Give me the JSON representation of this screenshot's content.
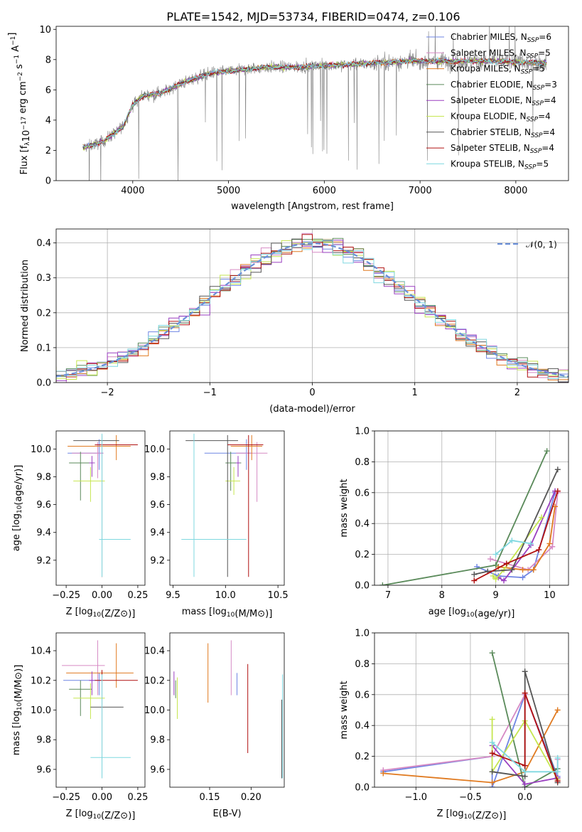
{
  "figure": {
    "title": "PLATE=1542, MJD=53734, FIBERID=0474, z=0.106"
  },
  "colors": {
    "Chabrier MILES": "#6f85e3",
    "Salpeter MILES": "#d68ac4",
    "Kroupa MILES": "#e07a20",
    "Chabrier ELODIE": "#5a8a5a",
    "Salpeter ELODIE": "#9a3fc0",
    "Kroupa ELODIE": "#c6e650",
    "Chabrier STELIB": "#555555",
    "Salpeter STELIB": "#b01010",
    "Kroupa STELIB": "#7fd8e0",
    "data": "#808080",
    "normal": "#6a8fd8",
    "grid": "#b0b0b0"
  },
  "chart_data": [
    {
      "type": "line",
      "id": "spectrum",
      "xlabel": "wavelength [Angstrom, rest frame]",
      "ylabel": "Flux [f_λ10^-17 erg cm^-2 s^-1 A^-1]",
      "xlim": [
        3200,
        8550
      ],
      "ylim": [
        0,
        10.2
      ],
      "xticks": [
        4000,
        5000,
        6000,
        7000,
        8000
      ],
      "yticks": [
        0,
        2,
        4,
        6,
        8,
        10
      ],
      "grid": false,
      "legend_position": "top-right",
      "series": [
        {
          "name": "Chabrier MILES, N_SSP=6",
          "model": "Chabrier MILES"
        },
        {
          "name": "Salpeter MILES, N_SSP=5",
          "model": "Salpeter MILES"
        },
        {
          "name": "Kroupa MILES, N_SSP=5",
          "model": "Kroupa MILES"
        },
        {
          "name": "Chabrier ELODIE, N_SSP=3",
          "model": "Chabrier ELODIE"
        },
        {
          "name": "Salpeter ELODIE, N_SSP=4",
          "model": "Salpeter ELODIE"
        },
        {
          "name": "Kroupa ELODIE, N_SSP=4",
          "model": "Kroupa ELODIE"
        },
        {
          "name": "Chabrier STELIB, N_SSP=4",
          "model": "Chabrier STELIB"
        },
        {
          "name": "Salpeter STELIB, N_SSP=4",
          "model": "Salpeter STELIB"
        },
        {
          "name": "Kroupa STELIB, N_SSP=5",
          "model": "Kroupa STELIB"
        }
      ],
      "continuum": {
        "x": [
          3500,
          3700,
          3900,
          4000,
          4100,
          4300,
          4500,
          4800,
          5100,
          5400,
          5700,
          6000,
          6300,
          6600,
          6900,
          7200,
          7500,
          7800,
          8100,
          8320
        ],
        "y": [
          2.2,
          2.6,
          3.6,
          5.0,
          5.6,
          5.8,
          6.4,
          7.1,
          7.3,
          7.5,
          7.5,
          7.6,
          7.7,
          7.8,
          7.9,
          7.9,
          7.9,
          7.9,
          7.8,
          7.8
        ]
      }
    },
    {
      "type": "line",
      "id": "residuals",
      "xlabel": "(data-model)/error",
      "ylabel": "Normed distribution",
      "xlim": [
        -2.5,
        2.5
      ],
      "ylim": [
        0,
        0.44
      ],
      "xticks": [
        -2,
        -1,
        0,
        1,
        2
      ],
      "yticks": [
        0.0,
        0.1,
        0.2,
        0.3,
        0.4
      ],
      "grid": true,
      "legend_position": "top-right",
      "normal_label": "𝒩(0, 1)",
      "bin_width": 0.1
    },
    {
      "type": "scatter",
      "id": "age-vs-Z",
      "xlabel": "Z [log10(Z/Z⊙)]",
      "ylabel": "age  [log10(age/yr)]",
      "xlim": [
        -0.32,
        0.3
      ],
      "ylim": [
        9.02,
        10.13
      ],
      "xticks": [
        -0.25,
        0.0,
        0.25
      ],
      "yticks": [
        9.2,
        9.4,
        9.6,
        9.8,
        10.0
      ],
      "grid": false,
      "points": [
        {
          "model": "Chabrier MILES",
          "x": -0.02,
          "y": 9.97,
          "xerr": [
            0.22,
            0.03
          ],
          "yerr": [
            0.12,
            0.1
          ]
        },
        {
          "model": "Salpeter MILES",
          "x": -0.03,
          "y": 9.97,
          "xerr": [
            0.18,
            0.04
          ],
          "yerr": [
            0.18,
            0.08
          ]
        },
        {
          "model": "Kroupa MILES",
          "x": 0.1,
          "y": 10.02,
          "xerr": [
            0.34,
            0.1
          ],
          "yerr": [
            0.1,
            0.08
          ]
        },
        {
          "model": "Chabrier ELODIE",
          "x": -0.15,
          "y": 9.9,
          "xerr": [
            0.08,
            0.08
          ],
          "yerr": [
            0.27,
            0.08
          ]
        },
        {
          "model": "Salpeter ELODIE",
          "x": -0.07,
          "y": 9.9,
          "xerr": [
            0.02,
            0.02
          ],
          "yerr": [
            0.1,
            0.05
          ]
        },
        {
          "model": "Kroupa ELODIE",
          "x": -0.08,
          "y": 9.77,
          "xerr": [
            0.12,
            0.1
          ],
          "yerr": [
            0.15,
            0.1
          ]
        },
        {
          "model": "Chabrier STELIB",
          "x": 0.0,
          "y": 10.06,
          "xerr": [
            0.2,
            0.12
          ],
          "yerr": [
            0.98,
            0.04
          ]
        },
        {
          "model": "Salpeter STELIB",
          "x": 0.0,
          "y": 10.03,
          "xerr": [
            0.05,
            0.25
          ],
          "yerr": [
            0.95,
            0.07
          ]
        },
        {
          "model": "Kroupa STELIB",
          "x": 0.0,
          "y": 9.35,
          "xerr": [
            0.02,
            0.2
          ],
          "yerr": [
            0.27,
            0.76
          ]
        }
      ]
    },
    {
      "type": "scatter",
      "id": "age-vs-mass",
      "xlabel": "mass [log10(M/M⊙)]",
      "ylabel": "",
      "xlim": [
        9.47,
        10.56
      ],
      "ylim": [
        9.02,
        10.13
      ],
      "xticks": [
        9.5,
        10.0,
        10.5
      ],
      "yticks": [
        9.2,
        9.4,
        9.6,
        9.8,
        10.0
      ],
      "grid": false,
      "points": [
        {
          "model": "Chabrier MILES",
          "x": 10.2,
          "y": 9.97,
          "xerr": [
            0.4,
            0.05
          ],
          "yerr": [
            0.12,
            0.1
          ]
        },
        {
          "model": "Salpeter MILES",
          "x": 10.3,
          "y": 9.97,
          "xerr": [
            0.2,
            0.1
          ],
          "yerr": [
            0.35,
            0.08
          ]
        },
        {
          "model": "Kroupa MILES",
          "x": 10.25,
          "y": 10.02,
          "xerr": [
            0.2,
            0.1
          ],
          "yerr": [
            0.1,
            0.08
          ]
        },
        {
          "model": "Chabrier ELODIE",
          "x": 10.05,
          "y": 9.9,
          "xerr": [
            0.05,
            0.1
          ],
          "yerr": [
            0.2,
            0.08
          ]
        },
        {
          "model": "Salpeter ELODIE",
          "x": 10.12,
          "y": 9.9,
          "xerr": [
            0.02,
            0.02
          ],
          "yerr": [
            0.1,
            0.05
          ]
        },
        {
          "model": "Kroupa ELODIE",
          "x": 10.08,
          "y": 9.77,
          "xerr": [
            0.08,
            0.06
          ],
          "yerr": [
            0.1,
            0.1
          ]
        },
        {
          "model": "Chabrier STELIB",
          "x": 10.02,
          "y": 10.06,
          "xerr": [
            0.4,
            0.1
          ],
          "yerr": [
            0.98,
            0.04
          ]
        },
        {
          "model": "Salpeter STELIB",
          "x": 10.22,
          "y": 10.03,
          "xerr": [
            0.2,
            0.14
          ],
          "yerr": [
            0.95,
            0.07
          ]
        },
        {
          "model": "Kroupa STELIB",
          "x": 9.7,
          "y": 9.35,
          "xerr": [
            0.12,
            0.5
          ],
          "yerr": [
            0.27,
            0.76
          ]
        }
      ]
    },
    {
      "type": "line",
      "id": "mass-weight-vs-age",
      "xlabel": "age  [log10(age/yr)]",
      "ylabel": "mass weight",
      "xlim": [
        6.75,
        10.35
      ],
      "ylim": [
        0,
        1
      ],
      "xticks": [
        7,
        8,
        9,
        10
      ],
      "yticks": [
        0.0,
        0.2,
        0.4,
        0.6,
        0.8,
        1.0
      ],
      "grid": true,
      "series": [
        {
          "model": "Chabrier MILES",
          "x": [
            8.65,
            9.05,
            9.5,
            9.7,
            10.1
          ],
          "y": [
            0.12,
            0.06,
            0.05,
            0.1,
            0.6
          ]
        },
        {
          "model": "Salpeter MILES",
          "x": [
            8.9,
            9.2,
            9.6,
            10.05,
            10.15
          ],
          "y": [
            0.17,
            0.14,
            0.1,
            0.25,
            0.6
          ]
        },
        {
          "model": "Kroupa MILES",
          "x": [
            9.05,
            9.5,
            9.7,
            10.0,
            10.1
          ],
          "y": [
            0.12,
            0.1,
            0.1,
            0.27,
            0.51
          ]
        },
        {
          "model": "Chabrier ELODIE",
          "x": [
            6.9,
            9.0,
            9.95
          ],
          "y": [
            0.0,
            0.13,
            0.87
          ]
        },
        {
          "model": "Salpeter ELODIE",
          "x": [
            9.05,
            9.15,
            9.65,
            10.1
          ],
          "y": [
            0.05,
            0.03,
            0.26,
            0.61
          ]
        },
        {
          "model": "Kroupa ELODIE",
          "x": [
            8.95,
            9.0,
            9.15,
            9.85
          ],
          "y": [
            0.06,
            0.04,
            0.1,
            0.44
          ]
        },
        {
          "model": "Chabrier STELIB",
          "x": [
            8.6,
            8.85,
            9.3,
            10.15
          ],
          "y": [
            0.07,
            0.09,
            0.1,
            0.75
          ]
        },
        {
          "model": "Salpeter STELIB",
          "x": [
            8.6,
            9.2,
            9.8,
            10.15
          ],
          "y": [
            0.03,
            0.14,
            0.23,
            0.61
          ]
        },
        {
          "model": "Kroupa STELIB",
          "x": [
            9.0,
            9.3,
            9.65
          ],
          "y": [
            0.2,
            0.29,
            0.27
          ]
        }
      ]
    },
    {
      "type": "scatter",
      "id": "mass-vs-Z",
      "xlabel": "Z [log10(Z/Z⊙)]",
      "ylabel": "mass [log10(M/M⊙)]",
      "xlim": [
        -0.32,
        0.3
      ],
      "ylim": [
        9.48,
        10.52
      ],
      "xticks": [
        -0.25,
        0.0,
        0.25
      ],
      "yticks": [
        9.6,
        9.8,
        10.0,
        10.2,
        10.4
      ],
      "grid": false,
      "points": [
        {
          "model": "Chabrier MILES",
          "x": -0.02,
          "y": 10.2,
          "xerr": [
            0.25,
            0.02
          ],
          "yerr": [
            0.1,
            0.05
          ]
        },
        {
          "model": "Salpeter MILES",
          "x": -0.03,
          "y": 10.3,
          "xerr": [
            0.25,
            0.05
          ],
          "yerr": [
            0.2,
            0.17
          ]
        },
        {
          "model": "Kroupa MILES",
          "x": 0.1,
          "y": 10.25,
          "xerr": [
            0.35,
            0.12
          ],
          "yerr": [
            0.1,
            0.2
          ]
        },
        {
          "model": "Chabrier ELODIE",
          "x": -0.15,
          "y": 10.14,
          "xerr": [
            0.08,
            0.08
          ],
          "yerr": [
            0.18,
            0.06
          ]
        },
        {
          "model": "Salpeter ELODIE",
          "x": -0.07,
          "y": 10.2,
          "xerr": [
            0.02,
            0.02
          ],
          "yerr": [
            0.1,
            0.06
          ]
        },
        {
          "model": "Kroupa ELODIE",
          "x": -0.08,
          "y": 10.08,
          "xerr": [
            0.12,
            0.1
          ],
          "yerr": [
            0.14,
            0.1
          ]
        },
        {
          "model": "Chabrier STELIB",
          "x": 0.0,
          "y": 10.02,
          "xerr": [
            0.08,
            0.15
          ],
          "yerr": [
            0.48,
            0.24
          ]
        },
        {
          "model": "Salpeter STELIB",
          "x": 0.0,
          "y": 10.2,
          "xerr": [
            0.05,
            0.25
          ],
          "yerr": [
            0.48,
            0.07
          ]
        },
        {
          "model": "Kroupa STELIB",
          "x": 0.0,
          "y": 9.68,
          "xerr": [
            0.08,
            0.2
          ],
          "yerr": [
            0.14,
            0.56
          ]
        }
      ]
    },
    {
      "type": "scatter",
      "id": "mass-vs-EBV",
      "xlabel": "E(B-V)",
      "ylabel": "",
      "xlim": [
        0.102,
        0.24
      ],
      "ylim": [
        9.48,
        10.52
      ],
      "xticks": [
        0.15,
        0.2
      ],
      "yticks": [
        9.6,
        9.8,
        10.0,
        10.2,
        10.4
      ],
      "grid": false,
      "points": [
        {
          "model": "Chabrier MILES",
          "x": 0.183,
          "y": 10.2,
          "yerr": [
            0.1,
            0.05
          ]
        },
        {
          "model": "Salpeter MILES",
          "x": 0.176,
          "y": 10.3,
          "yerr": [
            0.2,
            0.17
          ]
        },
        {
          "model": "Kroupa MILES",
          "x": 0.148,
          "y": 10.25,
          "yerr": [
            0.2,
            0.2
          ]
        },
        {
          "model": "Chabrier ELODIE",
          "x": 0.109,
          "y": 10.14,
          "yerr": [
            0.06,
            0.06
          ]
        },
        {
          "model": "Salpeter ELODIE",
          "x": 0.107,
          "y": 10.2,
          "yerr": [
            0.1,
            0.06
          ]
        },
        {
          "model": "Kroupa ELODIE",
          "x": 0.111,
          "y": 10.08,
          "yerr": [
            0.14,
            0.14
          ]
        },
        {
          "model": "Chabrier STELIB",
          "x": 0.237,
          "y": 10.02,
          "yerr": [
            0.48,
            0.05
          ]
        },
        {
          "model": "Salpeter STELIB",
          "x": 0.196,
          "y": 10.0,
          "yerr": [
            0.29,
            0.31
          ]
        },
        {
          "model": "Kroupa STELIB",
          "x": 0.238,
          "y": 9.88,
          "yerr": [
            0.34,
            0.36
          ]
        }
      ]
    },
    {
      "type": "line",
      "id": "mass-weight-vs-Z",
      "xlabel": "Z [log10(Z/Z⊙)]",
      "ylabel": "mass weight",
      "xlim": [
        -1.38,
        0.4
      ],
      "ylim": [
        0,
        1
      ],
      "xticks": [
        -1.0,
        -0.5,
        0.0
      ],
      "yticks": [
        0.0,
        0.2,
        0.4,
        0.6,
        0.8,
        1.0
      ],
      "grid": true,
      "series": [
        {
          "model": "Chabrier MILES",
          "x": [
            -1.3,
            -0.3,
            -0.3,
            0.0,
            0.3
          ],
          "y": [
            0.1,
            0.2,
            0.0,
            0.6,
            0.07
          ]
        },
        {
          "model": "Salpeter MILES",
          "x": [
            -1.3,
            -0.3,
            0.0,
            0.3,
            0.3
          ],
          "y": [
            0.11,
            0.2,
            0.6,
            0.05,
            0.18
          ]
        },
        {
          "model": "Kroupa MILES",
          "x": [
            -1.3,
            -0.3,
            0.0,
            0.3
          ],
          "y": [
            0.09,
            0.03,
            0.1,
            0.5
          ]
        },
        {
          "model": "Chabrier ELODIE",
          "x": [
            -0.3,
            0.0,
            0.3
          ],
          "y": [
            0.87,
            0.0,
            0.12
          ]
        },
        {
          "model": "Salpeter ELODIE",
          "x": [
            -0.3,
            0.0,
            0.3
          ],
          "y": [
            0.27,
            0.02,
            0.06
          ]
        },
        {
          "model": "Kroupa ELODIE",
          "x": [
            -0.3,
            -0.3,
            0.0,
            0.3
          ],
          "y": [
            0.44,
            0.1,
            0.43,
            0.05
          ]
        },
        {
          "model": "Chabrier STELIB",
          "x": [
            -0.3,
            0.0,
            0.0,
            0.3
          ],
          "y": [
            0.1,
            0.07,
            0.75,
            0.03
          ]
        },
        {
          "model": "Salpeter STELIB",
          "x": [
            -0.3,
            0.0,
            0.0,
            0.3
          ],
          "y": [
            0.22,
            0.14,
            0.61,
            0.04
          ]
        },
        {
          "model": "Kroupa STELIB",
          "x": [
            -0.3,
            0.0,
            0.3,
            0.3
          ],
          "y": [
            0.29,
            0.1,
            0.1,
            0.19
          ]
        }
      ]
    }
  ]
}
